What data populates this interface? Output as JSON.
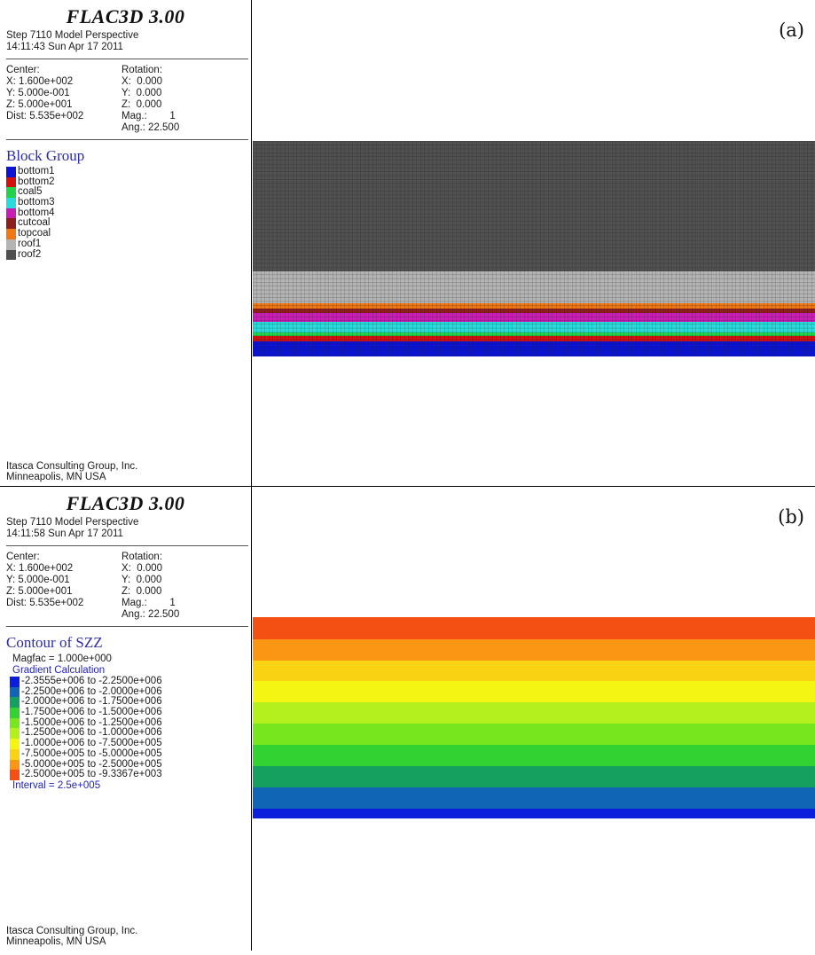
{
  "panel_a": {
    "label": "(a)",
    "app_title": "FLAC3D 3.00",
    "step_line": "Step 7110  Model Perspective",
    "time_line": "14:11:43 Sun Apr 17 2011",
    "view": {
      "center_label": "Center:",
      "rotation_label": "Rotation:",
      "cx": "X: 1.600e+002",
      "cy": "Y: 5.000e-001",
      "cz": "Z: 5.000e+001",
      "dist": "Dist: 5.535e+002",
      "rx": "X:  0.000",
      "ry": "Y:  0.000",
      "rz": "Z:  0.000",
      "mag": "Mag.:        1",
      "ang": "Ang.: 22.500"
    },
    "legend_title": "Block Group",
    "groups": [
      {
        "name": "bottom1",
        "color": "#0a14d2"
      },
      {
        "name": "bottom2",
        "color": "#d21010"
      },
      {
        "name": "coal5",
        "color": "#22d24a"
      },
      {
        "name": "bottom3",
        "color": "#29dcdc"
      },
      {
        "name": "bottom4",
        "color": "#c81eb4"
      },
      {
        "name": "cutcoal",
        "color": "#8c1e1e"
      },
      {
        "name": "topcoal",
        "color": "#f07814"
      },
      {
        "name": "roof1",
        "color": "#b4b4b4"
      },
      {
        "name": "roof2",
        "color": "#505050"
      }
    ],
    "footer_line1": "Itasca Consulting Group, Inc.",
    "footer_line2": "Minneapolis, MN  USA"
  },
  "panel_b": {
    "label": "(b)",
    "app_title": "FLAC3D 3.00",
    "step_line": "Step 7110  Model Perspective",
    "time_line": "14:11:58 Sun Apr 17 2011",
    "view": {
      "center_label": "Center:",
      "rotation_label": "Rotation:",
      "cx": "X: 1.600e+002",
      "cy": "Y: 5.000e-001",
      "cz": "Z: 5.000e+001",
      "dist": "Dist: 5.535e+002",
      "rx": "X:  0.000",
      "ry": "Y:  0.000",
      "rz": "Z:  0.000",
      "mag": "Mag.:        1",
      "ang": "Ang.: 22.500"
    },
    "legend_title": "Contour of SZZ",
    "magfac": "Magfac =  1.000e+000",
    "gradient": "Gradient Calculation",
    "ranges": [
      {
        "text": "-2.3555e+006 to -2.2500e+006",
        "color": "#0a1edc"
      },
      {
        "text": "-2.2500e+006 to -2.0000e+006",
        "color": "#1066b4"
      },
      {
        "text": "-2.0000e+006 to -1.7500e+006",
        "color": "#16a060"
      },
      {
        "text": "-1.7500e+006 to -1.5000e+006",
        "color": "#32d232"
      },
      {
        "text": "-1.5000e+006 to -1.2500e+006",
        "color": "#78e61e"
      },
      {
        "text": "-1.2500e+006 to -1.0000e+006",
        "color": "#b4f01e"
      },
      {
        "text": "-1.0000e+006 to -7.5000e+005",
        "color": "#f5f514"
      },
      {
        "text": "-7.5000e+005 to -5.0000e+005",
        "color": "#fad214"
      },
      {
        "text": "-5.0000e+005 to -2.5000e+005",
        "color": "#fa9614"
      },
      {
        "text": "-2.5000e+005 to -9.3367e+003",
        "color": "#f55014"
      }
    ],
    "interval": "Interval =  2.5e+005",
    "footer_line1": "Itasca Consulting Group, Inc.",
    "footer_line2": "Minneapolis, MN  USA"
  }
}
